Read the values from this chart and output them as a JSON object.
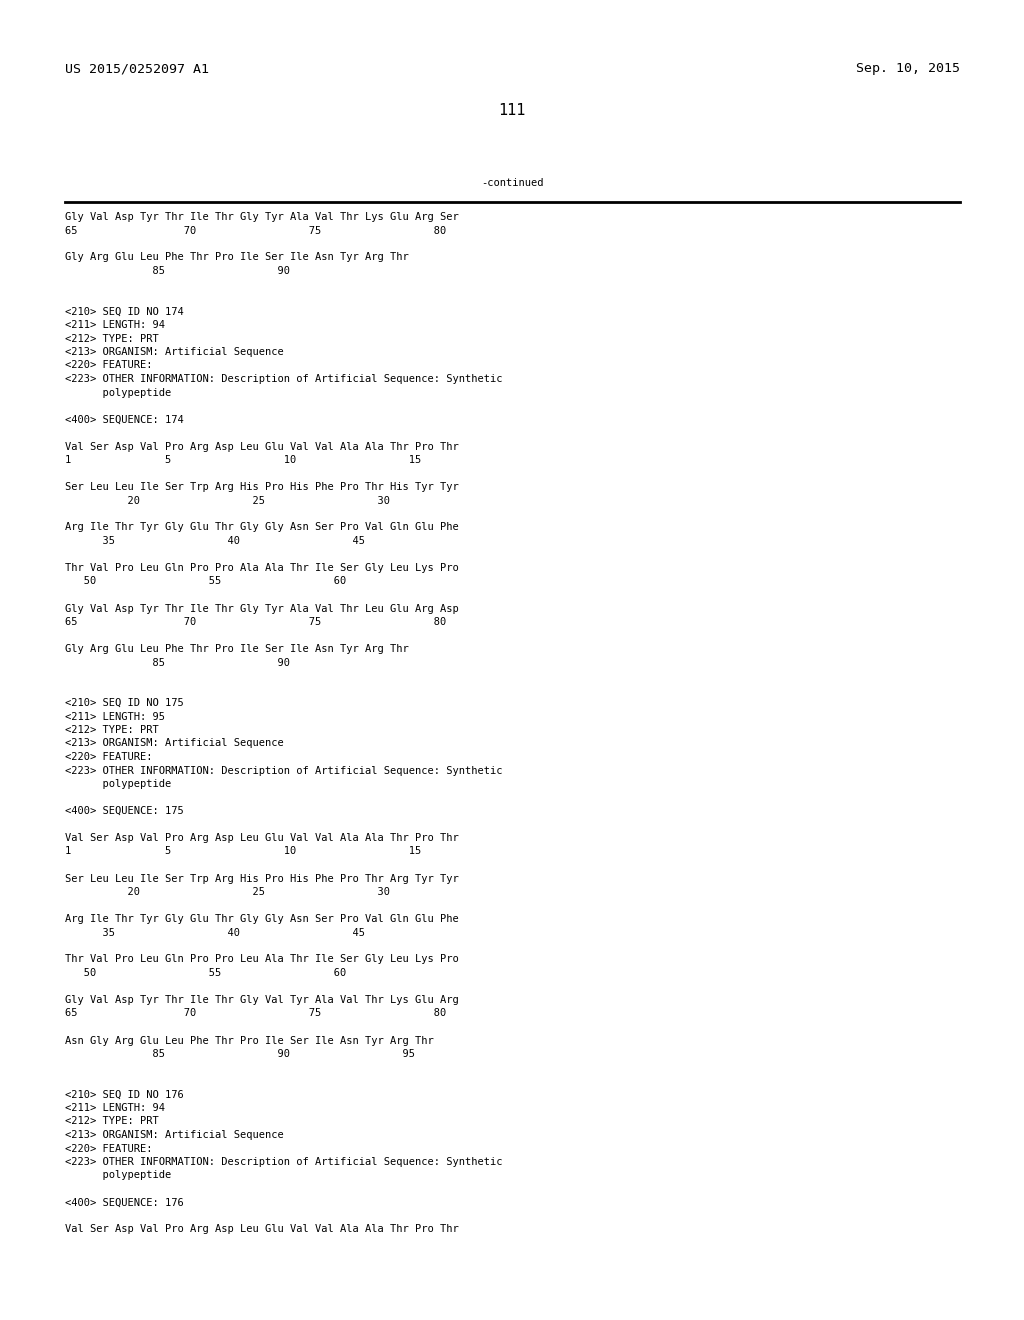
{
  "bg_color": "#ffffff",
  "header_left": "US 2015/0252097 A1",
  "header_right": "Sep. 10, 2015",
  "page_number": "111",
  "continued_label": "-continued",
  "font_size_body": 7.5,
  "font_size_header": 9.5,
  "font_size_page": 11,
  "lines": [
    "Gly Val Asp Tyr Thr Ile Thr Gly Tyr Ala Val Thr Lys Glu Arg Ser",
    "65                 70                  75                  80",
    "",
    "Gly Arg Glu Leu Phe Thr Pro Ile Ser Ile Asn Tyr Arg Thr",
    "              85                  90",
    "",
    "",
    "<210> SEQ ID NO 174",
    "<211> LENGTH: 94",
    "<212> TYPE: PRT",
    "<213> ORGANISM: Artificial Sequence",
    "<220> FEATURE:",
    "<223> OTHER INFORMATION: Description of Artificial Sequence: Synthetic",
    "      polypeptide",
    "",
    "<400> SEQUENCE: 174",
    "",
    "Val Ser Asp Val Pro Arg Asp Leu Glu Val Val Ala Ala Thr Pro Thr",
    "1               5                  10                  15",
    "",
    "Ser Leu Leu Ile Ser Trp Arg His Pro His Phe Pro Thr His Tyr Tyr",
    "          20                  25                  30",
    "",
    "Arg Ile Thr Tyr Gly Glu Thr Gly Gly Asn Ser Pro Val Gln Glu Phe",
    "      35                  40                  45",
    "",
    "Thr Val Pro Leu Gln Pro Pro Ala Ala Thr Ile Ser Gly Leu Lys Pro",
    "   50                  55                  60",
    "",
    "Gly Val Asp Tyr Thr Ile Thr Gly Tyr Ala Val Thr Leu Glu Arg Asp",
    "65                 70                  75                  80",
    "",
    "Gly Arg Glu Leu Phe Thr Pro Ile Ser Ile Asn Tyr Arg Thr",
    "              85                  90",
    "",
    "",
    "<210> SEQ ID NO 175",
    "<211> LENGTH: 95",
    "<212> TYPE: PRT",
    "<213> ORGANISM: Artificial Sequence",
    "<220> FEATURE:",
    "<223> OTHER INFORMATION: Description of Artificial Sequence: Synthetic",
    "      polypeptide",
    "",
    "<400> SEQUENCE: 175",
    "",
    "Val Ser Asp Val Pro Arg Asp Leu Glu Val Val Ala Ala Thr Pro Thr",
    "1               5                  10                  15",
    "",
    "Ser Leu Leu Ile Ser Trp Arg His Pro His Phe Pro Thr Arg Tyr Tyr",
    "          20                  25                  30",
    "",
    "Arg Ile Thr Tyr Gly Glu Thr Gly Gly Asn Ser Pro Val Gln Glu Phe",
    "      35                  40                  45",
    "",
    "Thr Val Pro Leu Gln Pro Pro Leu Ala Thr Ile Ser Gly Leu Lys Pro",
    "   50                  55                  60",
    "",
    "Gly Val Asp Tyr Thr Ile Thr Gly Val Tyr Ala Val Thr Lys Glu Arg",
    "65                 70                  75                  80",
    "",
    "Asn Gly Arg Glu Leu Phe Thr Pro Ile Ser Ile Asn Tyr Arg Thr",
    "              85                  90                  95",
    "",
    "",
    "<210> SEQ ID NO 176",
    "<211> LENGTH: 94",
    "<212> TYPE: PRT",
    "<213> ORGANISM: Artificial Sequence",
    "<220> FEATURE:",
    "<223> OTHER INFORMATION: Description of Artificial Sequence: Synthetic",
    "      polypeptide",
    "",
    "<400> SEQUENCE: 176",
    "",
    "Val Ser Asp Val Pro Arg Asp Leu Glu Val Val Ala Ala Thr Pro Thr"
  ]
}
